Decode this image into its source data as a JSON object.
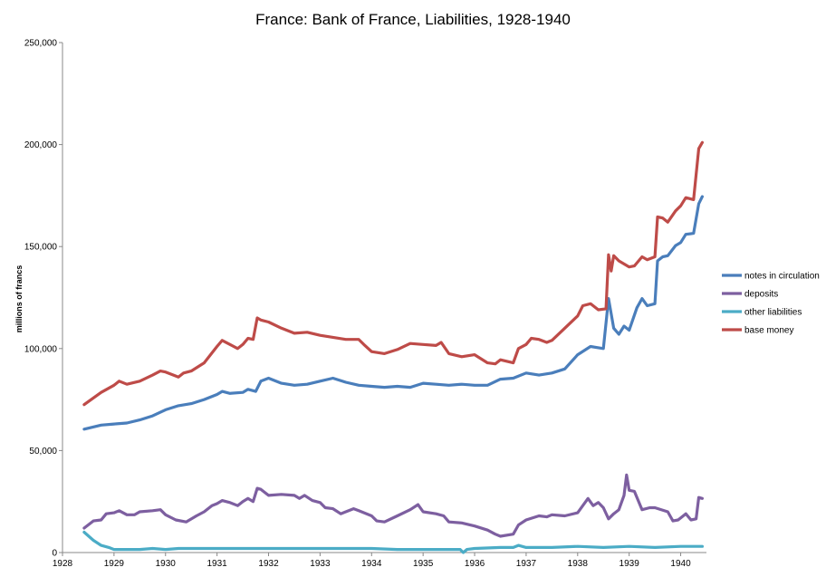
{
  "chart_data": {
    "type": "line",
    "title": "France: Bank of France, Liabilities, 1928-1940",
    "xlabel": "",
    "ylabel": "millions of francs",
    "xlim": [
      1928,
      1940.5
    ],
    "ylim": [
      0,
      250000
    ],
    "x_ticks": [
      "1928",
      "1929",
      "1930",
      "1931",
      "1932",
      "1933",
      "1934",
      "1935",
      "1936",
      "1937",
      "1938",
      "1939",
      "1940"
    ],
    "y_ticks": [
      "0",
      "50,000",
      "100,000",
      "150,000",
      "200,000",
      "250,000"
    ],
    "grid": false,
    "legend_position": "right",
    "series": [
      {
        "name": "notes in circulation",
        "color": "#4a7ebb",
        "points": [
          [
            1928.42,
            60500
          ],
          [
            1928.75,
            62500
          ],
          [
            1929.0,
            63000
          ],
          [
            1929.25,
            63500
          ],
          [
            1929.5,
            65000
          ],
          [
            1929.75,
            67000
          ],
          [
            1930.0,
            70000
          ],
          [
            1930.25,
            72000
          ],
          [
            1930.5,
            73000
          ],
          [
            1930.75,
            75000
          ],
          [
            1931.0,
            77500
          ],
          [
            1931.1,
            79000
          ],
          [
            1931.25,
            78000
          ],
          [
            1931.5,
            78500
          ],
          [
            1931.6,
            80000
          ],
          [
            1931.75,
            79000
          ],
          [
            1931.85,
            84000
          ],
          [
            1932.0,
            85500
          ],
          [
            1932.25,
            83000
          ],
          [
            1932.5,
            82000
          ],
          [
            1932.75,
            82500
          ],
          [
            1933.0,
            84000
          ],
          [
            1933.25,
            85500
          ],
          [
            1933.5,
            83500
          ],
          [
            1933.75,
            82000
          ],
          [
            1934.0,
            81500
          ],
          [
            1934.25,
            81000
          ],
          [
            1934.5,
            81500
          ],
          [
            1934.75,
            81000
          ],
          [
            1935.0,
            83000
          ],
          [
            1935.25,
            82500
          ],
          [
            1935.5,
            82000
          ],
          [
            1935.75,
            82500
          ],
          [
            1936.0,
            82000
          ],
          [
            1936.25,
            82000
          ],
          [
            1936.5,
            85000
          ],
          [
            1936.75,
            85500
          ],
          [
            1937.0,
            88000
          ],
          [
            1937.25,
            87000
          ],
          [
            1937.5,
            88000
          ],
          [
            1937.75,
            90000
          ],
          [
            1938.0,
            97000
          ],
          [
            1938.25,
            101000
          ],
          [
            1938.5,
            100000
          ],
          [
            1938.6,
            124500
          ],
          [
            1938.7,
            110000
          ],
          [
            1938.8,
            107000
          ],
          [
            1938.9,
            111000
          ],
          [
            1939.0,
            109000
          ],
          [
            1939.15,
            120000
          ],
          [
            1939.25,
            124500
          ],
          [
            1939.35,
            121000
          ],
          [
            1939.5,
            122000
          ],
          [
            1939.55,
            143000
          ],
          [
            1939.65,
            145000
          ],
          [
            1939.75,
            145500
          ],
          [
            1939.9,
            150500
          ],
          [
            1940.0,
            152000
          ],
          [
            1940.1,
            156000
          ],
          [
            1940.25,
            156500
          ],
          [
            1940.35,
            171000
          ],
          [
            1940.42,
            174500
          ]
        ]
      },
      {
        "name": "deposits",
        "color": "#7d5fa0",
        "points": [
          [
            1928.42,
            12000
          ],
          [
            1928.6,
            15500
          ],
          [
            1928.75,
            16000
          ],
          [
            1928.85,
            19000
          ],
          [
            1929.0,
            19500
          ],
          [
            1929.1,
            20500
          ],
          [
            1929.25,
            18500
          ],
          [
            1929.4,
            18500
          ],
          [
            1929.5,
            20000
          ],
          [
            1929.75,
            20500
          ],
          [
            1929.9,
            21000
          ],
          [
            1930.0,
            18500
          ],
          [
            1930.2,
            16000
          ],
          [
            1930.4,
            15000
          ],
          [
            1930.6,
            18000
          ],
          [
            1930.75,
            20000
          ],
          [
            1930.9,
            23000
          ],
          [
            1931.0,
            24000
          ],
          [
            1931.1,
            25500
          ],
          [
            1931.25,
            24500
          ],
          [
            1931.4,
            23000
          ],
          [
            1931.5,
            25000
          ],
          [
            1931.6,
            26500
          ],
          [
            1931.7,
            25000
          ],
          [
            1931.78,
            31500
          ],
          [
            1931.85,
            31000
          ],
          [
            1932.0,
            28000
          ],
          [
            1932.25,
            28500
          ],
          [
            1932.5,
            28000
          ],
          [
            1932.6,
            26500
          ],
          [
            1932.7,
            28000
          ],
          [
            1932.85,
            25500
          ],
          [
            1933.0,
            24500
          ],
          [
            1933.1,
            22000
          ],
          [
            1933.25,
            21500
          ],
          [
            1933.4,
            19000
          ],
          [
            1933.5,
            20000
          ],
          [
            1933.65,
            21500
          ],
          [
            1933.75,
            20500
          ],
          [
            1934.0,
            18000
          ],
          [
            1934.1,
            15500
          ],
          [
            1934.25,
            15000
          ],
          [
            1934.5,
            18000
          ],
          [
            1934.75,
            21000
          ],
          [
            1934.9,
            23500
          ],
          [
            1935.0,
            20000
          ],
          [
            1935.25,
            19000
          ],
          [
            1935.4,
            18000
          ],
          [
            1935.5,
            15000
          ],
          [
            1935.75,
            14500
          ],
          [
            1936.0,
            13000
          ],
          [
            1936.25,
            11000
          ],
          [
            1936.4,
            9000
          ],
          [
            1936.5,
            8000
          ],
          [
            1936.75,
            9000
          ],
          [
            1936.85,
            13500
          ],
          [
            1937.0,
            16000
          ],
          [
            1937.25,
            18000
          ],
          [
            1937.4,
            17500
          ],
          [
            1937.5,
            18500
          ],
          [
            1937.75,
            18000
          ],
          [
            1938.0,
            19500
          ],
          [
            1938.1,
            23000
          ],
          [
            1938.2,
            26500
          ],
          [
            1938.3,
            23000
          ],
          [
            1938.4,
            24500
          ],
          [
            1938.5,
            22000
          ],
          [
            1938.6,
            16500
          ],
          [
            1938.7,
            19000
          ],
          [
            1938.8,
            21000
          ],
          [
            1938.9,
            28000
          ],
          [
            1938.95,
            38000
          ],
          [
            1939.0,
            30500
          ],
          [
            1939.1,
            30000
          ],
          [
            1939.25,
            21000
          ],
          [
            1939.4,
            22000
          ],
          [
            1939.5,
            22000
          ],
          [
            1939.75,
            20000
          ],
          [
            1939.85,
            15500
          ],
          [
            1939.95,
            16000
          ],
          [
            1940.0,
            17000
          ],
          [
            1940.1,
            19000
          ],
          [
            1940.2,
            16000
          ],
          [
            1940.3,
            16500
          ],
          [
            1940.35,
            27000
          ],
          [
            1940.42,
            26500
          ]
        ]
      },
      {
        "name": "other liabilities",
        "color": "#4bacc6",
        "points": [
          [
            1928.42,
            10000
          ],
          [
            1928.6,
            6000
          ],
          [
            1928.75,
            3500
          ],
          [
            1928.9,
            2500
          ],
          [
            1929.0,
            1500
          ],
          [
            1929.25,
            1500
          ],
          [
            1929.5,
            1500
          ],
          [
            1929.75,
            2000
          ],
          [
            1930.0,
            1500
          ],
          [
            1930.25,
            2000
          ],
          [
            1930.5,
            2000
          ],
          [
            1930.75,
            2000
          ],
          [
            1931.0,
            2000
          ],
          [
            1931.5,
            2000
          ],
          [
            1932.0,
            2000
          ],
          [
            1932.5,
            2000
          ],
          [
            1933.0,
            2000
          ],
          [
            1933.5,
            2000
          ],
          [
            1934.0,
            2000
          ],
          [
            1934.5,
            1500
          ],
          [
            1935.0,
            1500
          ],
          [
            1935.5,
            1500
          ],
          [
            1935.72,
            1500
          ],
          [
            1935.78,
            0
          ],
          [
            1935.85,
            1500
          ],
          [
            1936.0,
            2000
          ],
          [
            1936.5,
            2500
          ],
          [
            1936.75,
            2500
          ],
          [
            1936.85,
            3500
          ],
          [
            1937.0,
            2500
          ],
          [
            1937.5,
            2500
          ],
          [
            1938.0,
            3000
          ],
          [
            1938.5,
            2500
          ],
          [
            1939.0,
            3000
          ],
          [
            1939.5,
            2500
          ],
          [
            1940.0,
            3000
          ],
          [
            1940.42,
            3000
          ]
        ]
      },
      {
        "name": "base money",
        "color": "#be4b48",
        "points": [
          [
            1928.42,
            72500
          ],
          [
            1928.75,
            78500
          ],
          [
            1929.0,
            82000
          ],
          [
            1929.1,
            84000
          ],
          [
            1929.25,
            82500
          ],
          [
            1929.5,
            84000
          ],
          [
            1929.75,
            87000
          ],
          [
            1929.9,
            89000
          ],
          [
            1930.0,
            88500
          ],
          [
            1930.25,
            86000
          ],
          [
            1930.35,
            88000
          ],
          [
            1930.5,
            89000
          ],
          [
            1930.75,
            93000
          ],
          [
            1931.0,
            101000
          ],
          [
            1931.1,
            104000
          ],
          [
            1931.25,
            102000
          ],
          [
            1931.4,
            100000
          ],
          [
            1931.5,
            102000
          ],
          [
            1931.6,
            105000
          ],
          [
            1931.7,
            104500
          ],
          [
            1931.78,
            115000
          ],
          [
            1931.85,
            114000
          ],
          [
            1932.0,
            113000
          ],
          [
            1932.25,
            110000
          ],
          [
            1932.5,
            107500
          ],
          [
            1932.75,
            108000
          ],
          [
            1933.0,
            106500
          ],
          [
            1933.25,
            105500
          ],
          [
            1933.5,
            104500
          ],
          [
            1933.75,
            104500
          ],
          [
            1933.85,
            102000
          ],
          [
            1934.0,
            98500
          ],
          [
            1934.25,
            97500
          ],
          [
            1934.5,
            99500
          ],
          [
            1934.75,
            102500
          ],
          [
            1935.0,
            102000
          ],
          [
            1935.25,
            101500
          ],
          [
            1935.35,
            103000
          ],
          [
            1935.5,
            97500
          ],
          [
            1935.75,
            96000
          ],
          [
            1936.0,
            97000
          ],
          [
            1936.25,
            93000
          ],
          [
            1936.4,
            92500
          ],
          [
            1936.5,
            94500
          ],
          [
            1936.75,
            93000
          ],
          [
            1936.85,
            100000
          ],
          [
            1937.0,
            102000
          ],
          [
            1937.1,
            105000
          ],
          [
            1937.25,
            104500
          ],
          [
            1937.4,
            103000
          ],
          [
            1937.5,
            104000
          ],
          [
            1937.75,
            110000
          ],
          [
            1938.0,
            116000
          ],
          [
            1938.1,
            121000
          ],
          [
            1938.25,
            122000
          ],
          [
            1938.4,
            119000
          ],
          [
            1938.55,
            119500
          ],
          [
            1938.6,
            146000
          ],
          [
            1938.65,
            138000
          ],
          [
            1938.7,
            145500
          ],
          [
            1938.8,
            143000
          ],
          [
            1939.0,
            140000
          ],
          [
            1939.1,
            140500
          ],
          [
            1939.25,
            145000
          ],
          [
            1939.35,
            143500
          ],
          [
            1939.5,
            145000
          ],
          [
            1939.55,
            164500
          ],
          [
            1939.65,
            164000
          ],
          [
            1939.75,
            162000
          ],
          [
            1939.9,
            167500
          ],
          [
            1940.0,
            170000
          ],
          [
            1940.1,
            174000
          ],
          [
            1940.25,
            173000
          ],
          [
            1940.35,
            198000
          ],
          [
            1940.42,
            201000
          ]
        ]
      }
    ]
  }
}
